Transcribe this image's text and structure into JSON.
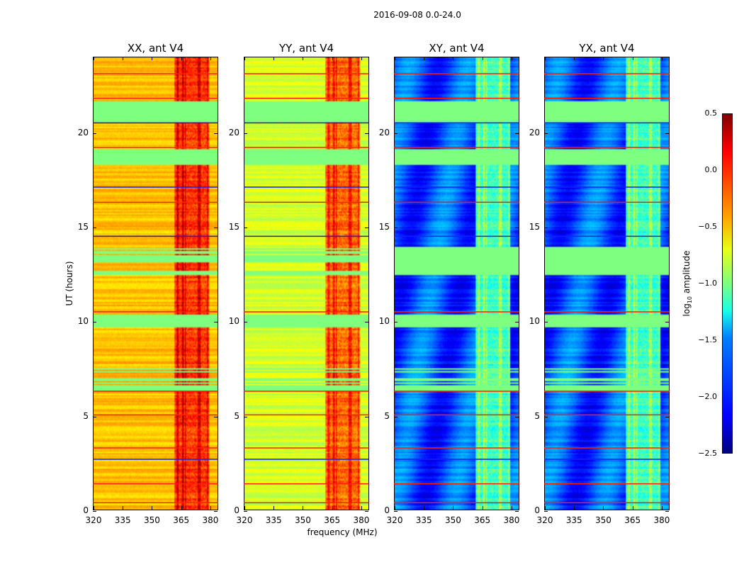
{
  "suptitle": "2016-09-08 0.0-24.0",
  "chart_data": {
    "type": "heatmap",
    "title": "2016-09-08 0.0-24.0",
    "xlabel": "frequency (MHz)",
    "ylabel": "UT (hours)",
    "xlim": [
      320,
      384.4
    ],
    "ylim": [
      0,
      24
    ],
    "xticks": [
      "320",
      "335",
      "350",
      "365",
      "380"
    ],
    "yticks": [
      "0",
      "5",
      "10",
      "15",
      "20"
    ],
    "panels": [
      {
        "title": "XX, ant V4",
        "base_log_amp": -0.45,
        "rfi_log_amp": -0.05,
        "rfi_range_mhz": [
          362,
          380
        ]
      },
      {
        "title": "YY, ant V4",
        "base_log_amp": -0.75,
        "rfi_log_amp": -0.2,
        "rfi_range_mhz": [
          362,
          380
        ]
      },
      {
        "title": "XY, ant V4",
        "base_log_amp": -1.9,
        "rfi_log_amp": -1.2,
        "rfi_range_mhz": [
          362,
          380
        ]
      },
      {
        "title": "YX, ant V4",
        "base_log_amp": -1.9,
        "rfi_log_amp": -1.2,
        "rfi_range_mhz": [
          362,
          380
        ]
      }
    ],
    "flagged_bands_hours": [
      [
        18.3,
        19.2
      ],
      [
        20.6,
        21.7
      ],
      [
        9.7,
        10.4
      ],
      [
        12.5,
        14.0
      ],
      [
        6.2,
        7.5
      ]
    ],
    "red_lines_hours": [
      0.4,
      1.4,
      3.3,
      5.05,
      6.3,
      10.5,
      16.3,
      19.2,
      21.8,
      23.1
    ],
    "blue_lines_hours": [
      2.7,
      14.5,
      17.1,
      20.5
    ],
    "colorbar": {
      "label": "log10 amplitude",
      "label_main": "log",
      "label_sub": "10",
      "label_rest": " amplitude",
      "min": -2.5,
      "max": 0.5,
      "ticks": [
        "0.5",
        "0.0",
        "−0.5",
        "−1.0",
        "−1.5",
        "−2.0",
        "−2.5"
      ],
      "colormap": "jet"
    }
  }
}
